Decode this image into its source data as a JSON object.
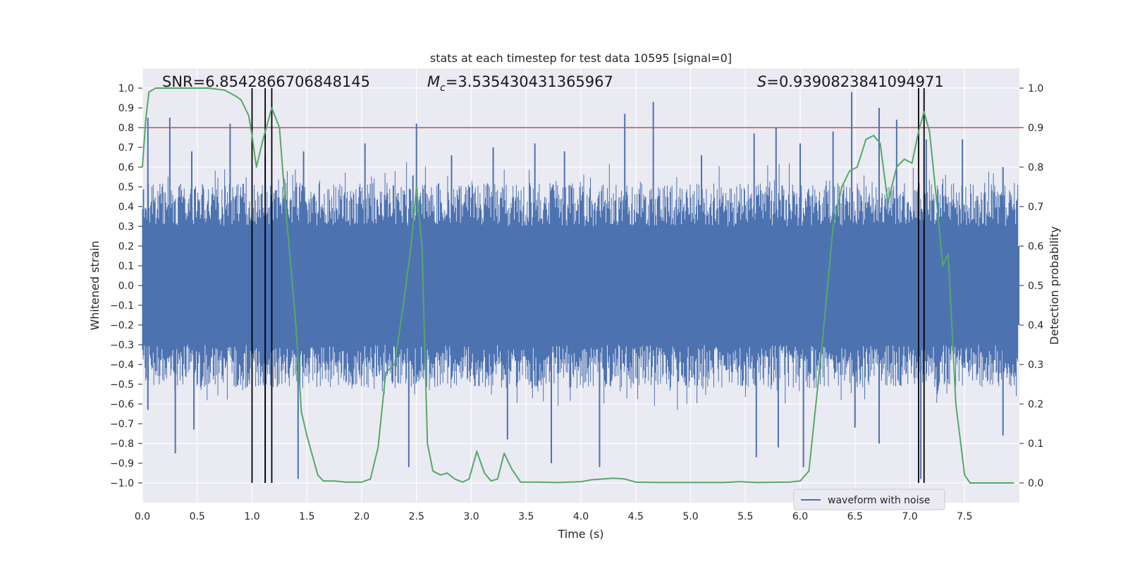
{
  "chart_data": {
    "type": "line",
    "title": "stats at each timestep for test data 10595 [signal=0]",
    "xlabel": "Time (s)",
    "ylabel_left": "Whitened strain",
    "ylabel_right": "Detection probability",
    "xlim": [
      0.0,
      8.0
    ],
    "ylim_left": [
      -1.1,
      1.1
    ],
    "ylim_right": [
      -0.05,
      1.05
    ],
    "x_ticks": [
      "0.0",
      "0.5",
      "1.0",
      "1.5",
      "2.0",
      "2.5",
      "3.0",
      "3.5",
      "4.0",
      "4.5",
      "5.0",
      "5.5",
      "6.0",
      "6.5",
      "7.0",
      "7.5"
    ],
    "y_left_ticks": [
      "1.0",
      "0.9",
      "0.8",
      "0.7",
      "0.6",
      "0.5",
      "0.4",
      "0.3",
      "0.2",
      "0.1",
      "0.0",
      "-0.1",
      "-0.2",
      "-0.3",
      "-0.4",
      "-0.5",
      "-0.6",
      "-0.7",
      "-0.8",
      "-0.9",
      "-1.0"
    ],
    "y_right_ticks": [
      "1.0",
      "0.9",
      "0.8",
      "0.7",
      "0.6",
      "0.5",
      "0.4",
      "0.3",
      "0.2",
      "0.1",
      "0.0"
    ],
    "grid": true,
    "annotations": {
      "snr": "SNR=6.8542866706848145",
      "mc_symbol": "M",
      "mc_sub": "c",
      "mc_value": "=3.535430431365967",
      "s_symbol": "S",
      "s_value": "=0.9390823841094971"
    },
    "threshold": {
      "y_right": 0.9,
      "color": "#c44e52"
    },
    "vertical_markers": [
      1.0,
      1.12,
      1.18,
      7.08,
      7.13
    ],
    "series": [
      {
        "name": "waveform with noise",
        "color": "#4c72b0",
        "role": "strain",
        "core_band": [
          -0.2,
          0.2
        ],
        "peaks_up": [
          [
            0.05,
            0.85
          ],
          [
            0.25,
            0.85
          ],
          [
            0.45,
            0.68
          ],
          [
            0.8,
            0.82
          ],
          [
            1.12,
            0.66
          ],
          [
            1.47,
            0.68
          ],
          [
            2.03,
            0.72
          ],
          [
            2.5,
            0.82
          ],
          [
            2.82,
            0.66
          ],
          [
            3.2,
            0.7
          ],
          [
            3.58,
            0.72
          ],
          [
            3.85,
            0.68
          ],
          [
            4.4,
            0.87
          ],
          [
            4.66,
            0.93
          ],
          [
            5.1,
            0.66
          ],
          [
            5.58,
            0.77
          ],
          [
            5.78,
            0.8
          ],
          [
            6.0,
            0.72
          ],
          [
            6.3,
            0.78
          ],
          [
            6.47,
            0.98
          ],
          [
            6.72,
            0.9
          ],
          [
            6.88,
            0.84
          ],
          [
            7.15,
            0.74
          ],
          [
            7.48,
            0.74
          ],
          [
            7.85,
            0.6
          ]
        ],
        "peaks_down": [
          [
            0.05,
            -0.63
          ],
          [
            0.3,
            -0.85
          ],
          [
            0.47,
            -0.73
          ],
          [
            1.12,
            -1.0
          ],
          [
            1.42,
            -0.98
          ],
          [
            2.43,
            -0.92
          ],
          [
            3.33,
            -0.78
          ],
          [
            3.73,
            -0.9
          ],
          [
            4.17,
            -0.92
          ],
          [
            5.6,
            -0.87
          ],
          [
            5.8,
            -0.82
          ],
          [
            6.03,
            -0.92
          ],
          [
            6.5,
            -0.72
          ],
          [
            6.72,
            -0.8
          ],
          [
            7.1,
            -0.98
          ],
          [
            7.85,
            -0.76
          ]
        ]
      },
      {
        "name": "detection probability",
        "color": "#55a868",
        "role": "probability",
        "points": [
          [
            0.0,
            0.8
          ],
          [
            0.03,
            0.92
          ],
          [
            0.06,
            0.99
          ],
          [
            0.12,
            1.0
          ],
          [
            0.3,
            1.0
          ],
          [
            0.6,
            1.0
          ],
          [
            0.75,
            0.995
          ],
          [
            0.85,
            0.98
          ],
          [
            0.9,
            0.97
          ],
          [
            0.97,
            0.93
          ],
          [
            1.0,
            0.88
          ],
          [
            1.04,
            0.8
          ],
          [
            1.1,
            0.87
          ],
          [
            1.18,
            0.95
          ],
          [
            1.25,
            0.9
          ],
          [
            1.3,
            0.72
          ],
          [
            1.4,
            0.4
          ],
          [
            1.45,
            0.18
          ],
          [
            1.5,
            0.12
          ],
          [
            1.55,
            0.07
          ],
          [
            1.6,
            0.02
          ],
          [
            1.65,
            0.005
          ],
          [
            1.75,
            0.005
          ],
          [
            1.85,
            0.002
          ],
          [
            2.0,
            0.002
          ],
          [
            2.08,
            0.01
          ],
          [
            2.15,
            0.09
          ],
          [
            2.22,
            0.28
          ],
          [
            2.3,
            0.3
          ],
          [
            2.38,
            0.45
          ],
          [
            2.45,
            0.6
          ],
          [
            2.5,
            0.75
          ],
          [
            2.55,
            0.6
          ],
          [
            2.6,
            0.1
          ],
          [
            2.65,
            0.03
          ],
          [
            2.72,
            0.02
          ],
          [
            2.78,
            0.025
          ],
          [
            2.85,
            0.01
          ],
          [
            2.92,
            0.002
          ],
          [
            2.98,
            0.01
          ],
          [
            3.05,
            0.08
          ],
          [
            3.12,
            0.025
          ],
          [
            3.18,
            0.005
          ],
          [
            3.24,
            0.01
          ],
          [
            3.3,
            0.075
          ],
          [
            3.37,
            0.035
          ],
          [
            3.45,
            0.002
          ],
          [
            3.6,
            0.002
          ],
          [
            3.8,
            0.001
          ],
          [
            4.0,
            0.003
          ],
          [
            4.1,
            0.008
          ],
          [
            4.2,
            0.01
          ],
          [
            4.3,
            0.012
          ],
          [
            4.4,
            0.01
          ],
          [
            4.5,
            0.002
          ],
          [
            4.7,
            0.001
          ],
          [
            5.0,
            0.001
          ],
          [
            5.3,
            0.001
          ],
          [
            5.45,
            0.003
          ],
          [
            5.6,
            0.001
          ],
          [
            5.9,
            0.002
          ],
          [
            6.0,
            0.005
          ],
          [
            6.08,
            0.03
          ],
          [
            6.2,
            0.35
          ],
          [
            6.3,
            0.65
          ],
          [
            6.38,
            0.75
          ],
          [
            6.45,
            0.79
          ],
          [
            6.52,
            0.8
          ],
          [
            6.6,
            0.87
          ],
          [
            6.67,
            0.88
          ],
          [
            6.73,
            0.86
          ],
          [
            6.8,
            0.71
          ],
          [
            6.88,
            0.8
          ],
          [
            6.95,
            0.82
          ],
          [
            7.02,
            0.81
          ],
          [
            7.08,
            0.89
          ],
          [
            7.13,
            0.94
          ],
          [
            7.18,
            0.89
          ],
          [
            7.25,
            0.7
          ],
          [
            7.3,
            0.55
          ],
          [
            7.35,
            0.58
          ],
          [
            7.42,
            0.2
          ],
          [
            7.5,
            0.02
          ],
          [
            7.55,
            0.0
          ],
          [
            7.7,
            0.0
          ],
          [
            7.95,
            0.0
          ]
        ]
      }
    ],
    "legend": {
      "entries": [
        "waveform with noise"
      ],
      "placement": "lower-right"
    }
  }
}
